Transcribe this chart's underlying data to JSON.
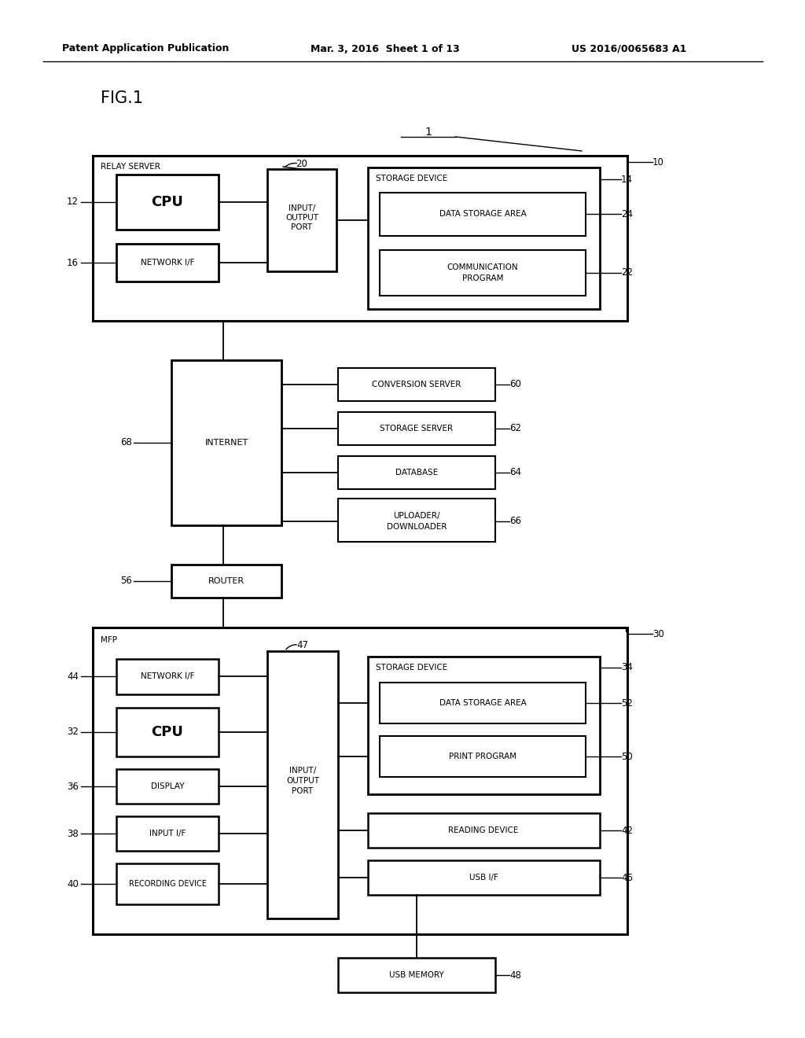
{
  "bg_color": "#ffffff",
  "header_left": "Patent Application Publication",
  "header_mid": "Mar. 3, 2016  Sheet 1 of 13",
  "header_right": "US 2016/0065683 A1"
}
